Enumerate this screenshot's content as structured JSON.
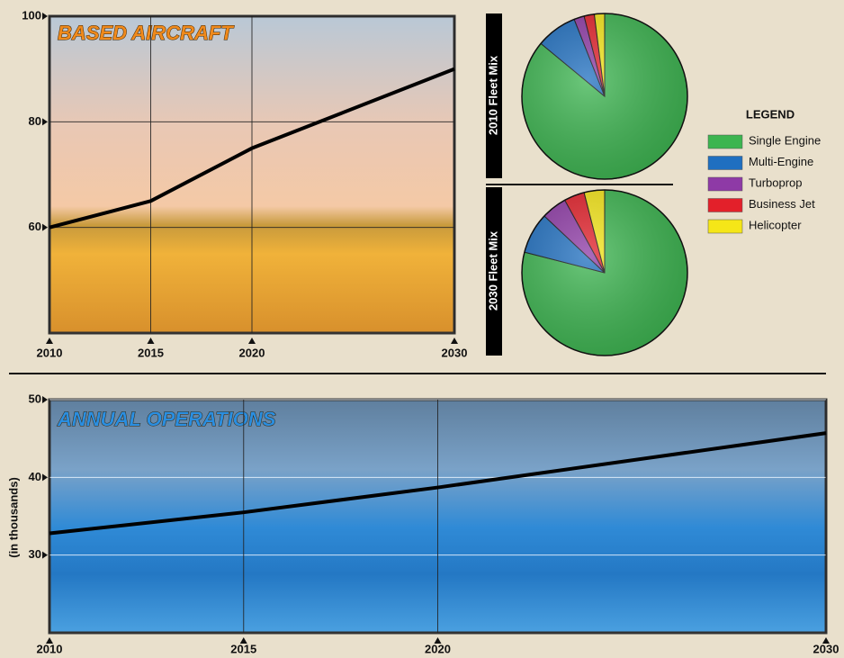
{
  "chart_data": [
    {
      "type": "line",
      "title": "BASED AIRCRAFT",
      "x": [
        2010,
        2015,
        2020,
        2030
      ],
      "values": [
        60,
        65,
        75,
        90
      ],
      "color": "#000000",
      "xlim": [
        2010,
        2030
      ],
      "xticks": [
        2010,
        2015,
        2020,
        2030
      ],
      "ylim": [
        40,
        100
      ],
      "yticks": [
        60,
        80,
        100
      ],
      "grid": true
    },
    {
      "type": "pie",
      "legend_title": "LEGEND",
      "categories": [
        "Single Engine",
        "Multi-Engine",
        "Turboprop",
        "Business Jet",
        "Helicopter"
      ],
      "colors": [
        "#3cb550",
        "#1f6fc0",
        "#8e3aa6",
        "#e3202a",
        "#f5e618"
      ],
      "series": [
        {
          "name": "2010 Fleet Mix",
          "values": [
            86,
            8,
            2,
            2,
            2
          ]
        },
        {
          "name": "2030 Fleet Mix",
          "values": [
            79,
            8,
            5,
            4,
            4
          ]
        }
      ]
    },
    {
      "type": "line",
      "title": "ANNUAL OPERATIONS",
      "ylabel": "(in thousands)",
      "x": [
        2010,
        2015,
        2020,
        2030
      ],
      "values": [
        32.8,
        35.5,
        38.7,
        45.7
      ],
      "color": "#000000",
      "xlim": [
        2010,
        2030
      ],
      "xticks": [
        2010,
        2015,
        2020,
        2030
      ],
      "ylim": [
        20,
        50
      ],
      "yticks": [
        30,
        40,
        50
      ],
      "grid": true
    }
  ]
}
